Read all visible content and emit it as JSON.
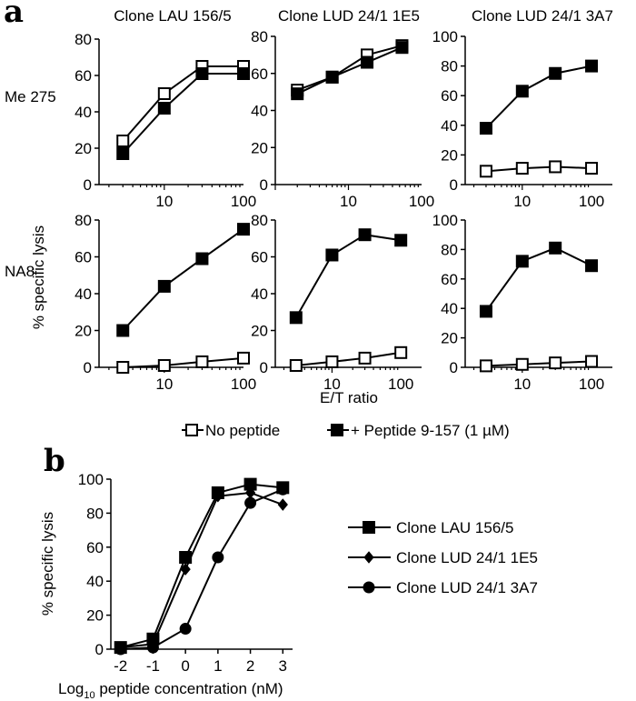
{
  "figure": {
    "panel_a_label": "a",
    "panel_b_label": "b"
  },
  "chart_data": [
    {
      "type": "line",
      "panel": "a",
      "row_label": "Me 275",
      "title": "Clone LAU 156/5",
      "ylim": [
        0,
        80
      ],
      "yticks": [
        0,
        20,
        40,
        60,
        80
      ],
      "xscale": "log",
      "xticks": [
        10,
        100
      ],
      "series": [
        {
          "name": "No peptide",
          "x": [
            3,
            10,
            30,
            100
          ],
          "values": [
            24,
            50,
            65,
            65
          ],
          "marker": "open-square"
        },
        {
          "name": "+ Peptide 9-157 (1 µM)",
          "x": [
            3,
            10,
            30,
            100
          ],
          "values": [
            17,
            42,
            61,
            61
          ],
          "marker": "filled-square"
        }
      ]
    },
    {
      "type": "line",
      "panel": "a",
      "row_label": "Me 275",
      "title": "Clone LUD 24/1 1E5",
      "ylim": [
        0,
        80
      ],
      "yticks": [
        0,
        20,
        40,
        60,
        80
      ],
      "xscale": "log",
      "xticks": [
        10,
        100
      ],
      "series": [
        {
          "name": "No peptide",
          "x": [
            2,
            6,
            18,
            54
          ],
          "values": [
            51,
            58,
            70,
            75
          ],
          "marker": "open-square"
        },
        {
          "name": "+ Peptide 9-157 (1 µM)",
          "x": [
            2,
            6,
            18,
            54
          ],
          "values": [
            49,
            58,
            66,
            74
          ],
          "marker": "filled-square"
        }
      ]
    },
    {
      "type": "line",
      "panel": "a",
      "row_label": "Me 275",
      "title": "Clone LUD 24/1 3A7",
      "ylim": [
        0,
        100
      ],
      "yticks": [
        0,
        20,
        40,
        60,
        80,
        100
      ],
      "xscale": "log",
      "xticks": [
        10,
        100
      ],
      "series": [
        {
          "name": "No peptide",
          "x": [
            3,
            10,
            30,
            100
          ],
          "values": [
            9,
            11,
            12,
            11
          ],
          "marker": "open-square"
        },
        {
          "name": "+ Peptide 9-157 (1 µM)",
          "x": [
            3,
            10,
            30,
            100
          ],
          "values": [
            38,
            63,
            75,
            80
          ],
          "marker": "filled-square"
        }
      ]
    },
    {
      "type": "line",
      "panel": "a",
      "row_label": "NA8",
      "title": "",
      "ylim": [
        0,
        80
      ],
      "yticks": [
        0,
        20,
        40,
        60,
        80
      ],
      "xscale": "log",
      "xticks": [
        10,
        100
      ],
      "series": [
        {
          "name": "No peptide",
          "x": [
            3,
            10,
            30,
            100
          ],
          "values": [
            0,
            1,
            3,
            5
          ],
          "marker": "open-square"
        },
        {
          "name": "+ Peptide 9-157 (1 µM)",
          "x": [
            3,
            10,
            30,
            100
          ],
          "values": [
            20,
            44,
            59,
            75
          ],
          "marker": "filled-square"
        }
      ]
    },
    {
      "type": "line",
      "panel": "a",
      "row_label": "NA8",
      "title": "",
      "ylim": [
        0,
        80
      ],
      "yticks": [
        0,
        20,
        40,
        60,
        80
      ],
      "xscale": "log",
      "xticks": [
        10,
        100
      ],
      "series": [
        {
          "name": "No peptide",
          "x": [
            3,
            10,
            30,
            100
          ],
          "values": [
            1,
            3,
            5,
            8
          ],
          "marker": "open-square"
        },
        {
          "name": "+ Peptide 9-157 (1 µM)",
          "x": [
            3,
            10,
            30,
            100
          ],
          "values": [
            27,
            61,
            72,
            69
          ],
          "marker": "filled-square"
        }
      ]
    },
    {
      "type": "line",
      "panel": "a",
      "row_label": "NA8",
      "title": "",
      "ylim": [
        0,
        100
      ],
      "yticks": [
        0,
        20,
        40,
        60,
        80,
        100
      ],
      "xscale": "log",
      "xticks": [
        10,
        100
      ],
      "series": [
        {
          "name": "No peptide",
          "x": [
            3,
            10,
            30,
            100
          ],
          "values": [
            1,
            2,
            3,
            4
          ],
          "marker": "open-square"
        },
        {
          "name": "+ Peptide 9-157 (1 µM)",
          "x": [
            3,
            10,
            30,
            100
          ],
          "values": [
            38,
            72,
            81,
            69
          ],
          "marker": "filled-square"
        }
      ]
    },
    {
      "type": "line",
      "panel": "b",
      "title": "",
      "xlabel_parts": [
        "Log",
        "10",
        " peptide concentration (nM)"
      ],
      "ylabel": "% specific lysis",
      "ylim": [
        0,
        100
      ],
      "yticks": [
        0,
        20,
        40,
        60,
        80,
        100
      ],
      "x": [
        -2,
        -1,
        0,
        1,
        2,
        3
      ],
      "xticks": [
        -2,
        -1,
        0,
        1,
        2,
        3
      ],
      "series": [
        {
          "name": "Clone LAU 156/5",
          "values": [
            1,
            6,
            54,
            92,
            97,
            95
          ],
          "marker": "filled-square"
        },
        {
          "name": "Clone LUD 24/1 1E5",
          "values": [
            1,
            3,
            47,
            90,
            92,
            85
          ],
          "marker": "filled-diamond"
        },
        {
          "name": "Clone LUD 24/1 3A7",
          "values": [
            0,
            1,
            12,
            54,
            86,
            94
          ],
          "marker": "filled-circle"
        }
      ]
    }
  ],
  "panel_a": {
    "ylabel": "% specific lysis",
    "xlabel": "E/T ratio",
    "legend": [
      "No peptide",
      "+ Peptide 9-157 (1 µM)"
    ]
  }
}
